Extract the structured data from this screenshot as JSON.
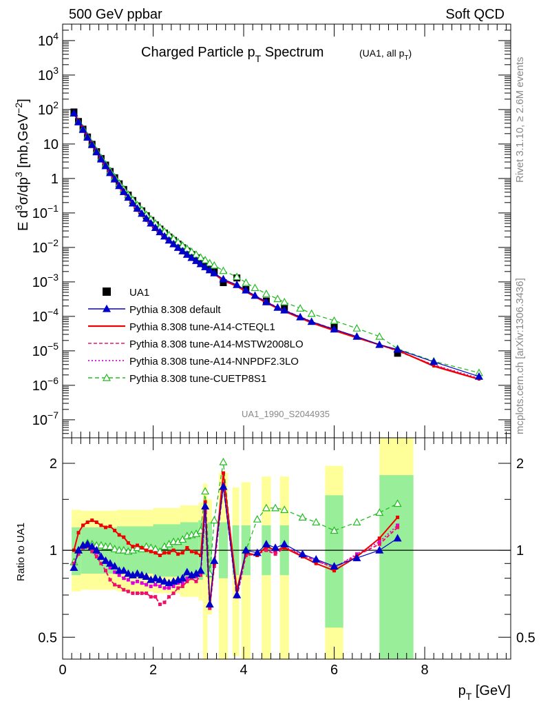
{
  "header": {
    "left": "500 GeV ppbar",
    "right": "Soft QCD"
  },
  "side": {
    "rivet": "Rivet 3.1.10, ≥ 2.6M events",
    "url": "mcplots.cern.ch [arXiv:1306.3436]"
  },
  "watermark": "UA1_1990_S2044935",
  "chart_data": [
    {
      "type": "scatter",
      "title": "Charged Particle pT Spectrum",
      "subtitle": "(UA1, all pT)",
      "ylabel": "E d3σ/dp3 [mb,GeV-2]",
      "xlabel": "pT [GeV]",
      "yscale": "log",
      "xlim": [
        0,
        9.9
      ],
      "ylim": [
        3e-08,
        30000
      ],
      "y_ticks": [
        {
          "v": 1e-07,
          "m": "10",
          "e": "−7"
        },
        {
          "v": 1e-06,
          "m": "10",
          "e": "−6"
        },
        {
          "v": 1e-05,
          "m": "10",
          "e": "−5"
        },
        {
          "v": 0.0001,
          "m": "10",
          "e": "−4"
        },
        {
          "v": 0.001,
          "m": "10",
          "e": "−3"
        },
        {
          "v": 0.01,
          "m": "10",
          "e": "−2"
        },
        {
          "v": 0.1,
          "m": "10",
          "e": "−1"
        },
        {
          "v": 1,
          "m": "1",
          "e": ""
        },
        {
          "v": 10,
          "m": "10",
          "e": ""
        },
        {
          "v": 100,
          "m": "10",
          "e": "2"
        },
        {
          "v": 1000,
          "m": "10",
          "e": "3"
        },
        {
          "v": 10000,
          "m": "10",
          "e": "4"
        }
      ],
      "legend": [
        {
          "label": "UA1",
          "color": "#000000",
          "style": "square"
        },
        {
          "label": "Pythia 8.308 default",
          "color": "#0000cc",
          "style": "solid-triangle"
        },
        {
          "label": "Pythia 8.308 tune-A14-CTEQL1",
          "color": "#ee0000",
          "style": "solid-thick"
        },
        {
          "label": "Pythia 8.308 tune-A14-MSTW2008LO",
          "color": "#ee1166",
          "style": "dashed"
        },
        {
          "label": "Pythia 8.308 tune-A14-NNPDF2.3LO",
          "color": "#dd00dd",
          "style": "dotted"
        },
        {
          "label": "Pythia 8.308 tune-CUETP8S1",
          "color": "#22bb22",
          "style": "dashed-open-triangle"
        }
      ],
      "data_ua1": {
        "x": [
          0.25,
          0.35,
          0.45,
          0.55,
          0.65,
          0.75,
          0.85,
          0.95,
          1.05,
          1.15,
          1.25,
          1.35,
          1.45,
          1.55,
          1.65,
          1.75,
          1.85,
          1.95,
          2.05,
          2.15,
          2.25,
          2.35,
          2.45,
          2.55,
          2.65,
          2.75,
          2.85,
          2.95,
          3.05,
          3.15,
          3.25,
          3.35,
          3.55,
          3.85,
          4.05,
          4.5,
          4.9,
          6.0,
          7.4
        ],
        "y": [
          85,
          45,
          27,
          16,
          9.8,
          6.0,
          3.8,
          2.45,
          1.6,
          1.05,
          0.7,
          0.48,
          0.33,
          0.23,
          0.16,
          0.115,
          0.083,
          0.061,
          0.045,
          0.034,
          0.026,
          0.02,
          0.016,
          0.0125,
          0.0098,
          0.0078,
          0.0062,
          0.005,
          0.004,
          0.0032,
          0.0024,
          0.002,
          0.00095,
          0.0013,
          0.0006,
          0.00028,
          0.00017,
          4.8e-05,
          8.5e-06
        ]
      },
      "mc": {
        "x": [
          0.25,
          0.35,
          0.45,
          0.55,
          0.65,
          0.75,
          0.85,
          0.95,
          1.05,
          1.15,
          1.25,
          1.35,
          1.45,
          1.55,
          1.65,
          1.75,
          1.85,
          1.95,
          2.05,
          2.15,
          2.25,
          2.35,
          2.45,
          2.55,
          2.65,
          2.75,
          2.85,
          2.95,
          3.05,
          3.15,
          3.25,
          3.35,
          3.55,
          3.85,
          4.05,
          4.25,
          4.5,
          4.75,
          4.9,
          5.25,
          5.5,
          6.0,
          6.5,
          7.0,
          7.4,
          8.2,
          9.2
        ],
        "default": [
          78,
          43,
          26,
          15.5,
          9.4,
          5.8,
          3.6,
          2.3,
          1.45,
          0.95,
          0.61,
          0.41,
          0.28,
          0.19,
          0.135,
          0.096,
          0.069,
          0.05,
          0.037,
          0.028,
          0.021,
          0.016,
          0.0125,
          0.0098,
          0.0078,
          0.0062,
          0.005,
          0.0041,
          0.0033,
          0.0027,
          0.0022,
          0.0018,
          0.0012,
          0.00082,
          0.00057,
          0.0004,
          0.00026,
          0.00018,
          0.00015,
          9.5e-05,
          7e-05,
          4.2e-05,
          2.6e-05,
          1.5e-05,
          1.1e-05,
          4.8e-06,
          1.8e-06
        ],
        "cteql1": [
          80,
          48,
          30,
          17.5,
          10.5,
          6.3,
          3.9,
          2.5,
          1.6,
          1.05,
          0.68,
          0.45,
          0.3,
          0.205,
          0.142,
          0.1,
          0.072,
          0.052,
          0.038,
          0.0285,
          0.021,
          0.016,
          0.0123,
          0.0096,
          0.0075,
          0.006,
          0.0048,
          0.0039,
          0.0032,
          0.0026,
          0.0021,
          0.0017,
          0.0011,
          0.00075,
          0.00052,
          0.00037,
          0.00025,
          0.00017,
          0.00014,
          9e-05,
          6.5e-05,
          3.9e-05,
          2.4e-05,
          1.5e-05,
          1.05e-05,
          3.6e-06,
          1.5e-06
        ],
        "mstw": [
          77,
          43,
          26,
          15.3,
          9.2,
          5.6,
          3.4,
          2.1,
          1.32,
          0.86,
          0.55,
          0.37,
          0.25,
          0.17,
          0.118,
          0.084,
          0.06,
          0.044,
          0.033,
          0.025,
          0.019,
          0.0145,
          0.0113,
          0.0089,
          0.007,
          0.0056,
          0.0046,
          0.0038,
          0.0031,
          0.0026,
          0.0021,
          0.0017,
          0.00115,
          0.0008,
          0.00055,
          0.00039,
          0.00026,
          0.00018,
          0.00015,
          9.6e-05,
          7e-05,
          4.2e-05,
          2.5e-05,
          1.5e-05,
          1e-05,
          3.8e-06,
          1.5e-06
        ],
        "nnpdf": [
          78,
          43.5,
          26.5,
          15.6,
          9.4,
          5.75,
          3.5,
          2.2,
          1.4,
          0.9,
          0.58,
          0.39,
          0.265,
          0.18,
          0.126,
          0.089,
          0.064,
          0.047,
          0.035,
          0.026,
          0.0198,
          0.0152,
          0.0118,
          0.0093,
          0.0073,
          0.0058,
          0.0047,
          0.0039,
          0.0032,
          0.0026,
          0.0021,
          0.0017,
          0.00115,
          0.0008,
          0.00056,
          0.0004,
          0.00027,
          0.00018,
          0.00015,
          9.6e-05,
          7e-05,
          4.1e-05,
          2.5e-05,
          1.5e-05,
          1e-05,
          3.9e-06,
          1.6e-06
        ],
        "cuetp8s1": [
          77,
          45,
          28,
          16.8,
          10.3,
          6.3,
          3.95,
          2.55,
          1.65,
          1.08,
          0.72,
          0.49,
          0.34,
          0.24,
          0.17,
          0.122,
          0.089,
          0.066,
          0.05,
          0.038,
          0.029,
          0.023,
          0.018,
          0.0143,
          0.0114,
          0.0092,
          0.0075,
          0.0062,
          0.0051,
          0.0043,
          0.0035,
          0.003,
          0.0021,
          0.0014,
          0.00095,
          0.00067,
          0.00045,
          0.00032,
          0.00026,
          0.00017,
          0.00012,
          7.5e-05,
          4.5e-05,
          2.6e-05,
          1.15e-05,
          5e-06,
          2.3e-06
        ]
      }
    },
    {
      "type": "line",
      "ylabel": "Ratio to UA1",
      "xlabel": "pT [GeV]",
      "yscale": "log",
      "xlim": [
        0,
        9.9
      ],
      "ylim": [
        0.42,
        2.45
      ],
      "y_ticks": [
        "0.5",
        "1",
        "2"
      ],
      "x_ticks": [
        "0",
        "2",
        "4",
        "6",
        "8"
      ],
      "bands": [
        {
          "x0": 0.2,
          "x1": 0.4,
          "inner": [
            0.82,
            1.2
          ],
          "outer": [
            0.72,
            1.38
          ]
        },
        {
          "x0": 0.4,
          "x1": 1.2,
          "inner": [
            0.83,
            1.2
          ],
          "outer": [
            0.73,
            1.37
          ]
        },
        {
          "x0": 1.2,
          "x1": 2.0,
          "inner": [
            0.83,
            1.21
          ],
          "outer": [
            0.72,
            1.38
          ]
        },
        {
          "x0": 2.0,
          "x1": 2.6,
          "inner": [
            0.81,
            1.23
          ],
          "outer": [
            0.71,
            1.4
          ]
        },
        {
          "x0": 2.6,
          "x1": 3.0,
          "inner": [
            0.8,
            1.25
          ],
          "outer": [
            0.69,
            1.43
          ]
        },
        {
          "x0": 3.0,
          "x1": 3.1,
          "inner": [
            0.79,
            1.27
          ],
          "outer": [
            0.67,
            1.46
          ]
        },
        {
          "x0": 3.1,
          "x1": 3.2,
          "inner": [
            0.82,
            1.2
          ],
          "outer": [
            0.4,
            1.7
          ]
        },
        {
          "x0": 3.2,
          "x1": 3.3,
          "inner": [
            0.8,
            1.25
          ],
          "outer": [
            0.6,
            1.5
          ]
        },
        {
          "x0": 3.45,
          "x1": 3.65,
          "inner": [
            0.8,
            1.25
          ],
          "outer": [
            0.38,
            1.85
          ]
        },
        {
          "x0": 3.75,
          "x1": 3.9,
          "inner": [
            0.82,
            1.22
          ],
          "outer": [
            0.43,
            1.65
          ]
        },
        {
          "x0": 3.95,
          "x1": 4.15,
          "inner": [
            0.82,
            1.22
          ],
          "outer": [
            0.38,
            1.72
          ]
        },
        {
          "x0": 4.4,
          "x1": 4.6,
          "inner": [
            0.82,
            1.22
          ],
          "outer": [
            0.38,
            1.8
          ]
        },
        {
          "x0": 4.8,
          "x1": 5.0,
          "inner": [
            0.82,
            1.22
          ],
          "outer": [
            0.38,
            1.8
          ]
        },
        {
          "x0": 5.8,
          "x1": 6.2,
          "inner": [
            0.54,
            1.55
          ],
          "outer": [
            0.3,
            1.96
          ]
        },
        {
          "x0": 7.0,
          "x1": 7.75,
          "inner": [
            0.3,
            1.82
          ],
          "outer": [
            0.3,
            2.6
          ]
        }
      ],
      "ratios": {
        "default": [
          0.87,
          1.0,
          1.04,
          1.05,
          1.03,
          1.0,
          0.95,
          0.92,
          0.9,
          0.88,
          0.85,
          0.85,
          0.83,
          0.82,
          0.83,
          0.82,
          0.81,
          0.79,
          0.8,
          0.79,
          0.78,
          0.77,
          0.78,
          0.79,
          0.8,
          0.84,
          0.82,
          0.83,
          0.85,
          1.42,
          0.65,
          0.92,
          1.66,
          0.7,
          1.0,
          0.98,
          1.05,
          1.02,
          1.05,
          0.97,
          0.93,
          0.88,
          0.94,
          1.0,
          1.1
        ],
        "cteql1": [
          1.0,
          1.15,
          1.22,
          1.25,
          1.27,
          1.25,
          1.22,
          1.2,
          1.21,
          1.17,
          1.13,
          1.11,
          1.06,
          1.03,
          1.04,
          1.02,
          1.0,
          0.99,
          0.98,
          0.96,
          0.98,
          0.98,
          1.0,
          0.97,
          0.98,
          1.02,
          0.99,
          0.98,
          0.96,
          1.47,
          0.65,
          0.9,
          1.85,
          0.73,
          0.98,
          0.96,
          1.03,
          1.0,
          1.02,
          0.95,
          0.9,
          0.85,
          0.95,
          1.1,
          1.3
        ],
        "mstw": [
          0.9,
          0.97,
          1.02,
          1.03,
          0.99,
          0.95,
          0.9,
          0.85,
          0.79,
          0.76,
          0.75,
          0.73,
          0.72,
          0.71,
          0.71,
          0.71,
          0.71,
          0.69,
          0.69,
          0.65,
          0.66,
          0.69,
          0.71,
          0.74,
          0.75,
          0.78,
          0.8,
          0.78,
          0.82,
          1.35,
          0.63,
          0.88,
          1.68,
          0.69,
          0.96,
          0.97,
          1.0,
          0.97,
          1.02,
          0.96,
          0.92,
          0.87,
          0.96,
          1.05,
          1.2
        ],
        "nnpdf": [
          0.9,
          0.99,
          1.03,
          1.05,
          1.02,
          0.98,
          0.94,
          0.91,
          0.87,
          0.84,
          0.82,
          0.8,
          0.79,
          0.77,
          0.78,
          0.77,
          0.76,
          0.75,
          0.76,
          0.75,
          0.74,
          0.74,
          0.75,
          0.77,
          0.77,
          0.8,
          0.8,
          0.81,
          0.83,
          1.38,
          0.64,
          0.9,
          1.7,
          0.7,
          0.97,
          0.96,
          1.01,
          0.98,
          1.03,
          0.96,
          0.92,
          0.87,
          0.97,
          1.07,
          1.22
        ],
        "cuetp8s1": [
          0.91,
          1.0,
          1.04,
          1.06,
          1.05,
          1.04,
          1.04,
          1.03,
          1.03,
          1.01,
          1.0,
          1.0,
          0.99,
          1.0,
          1.02,
          1.01,
          1.03,
          1.02,
          1.01,
          0.99,
          1.03,
          1.05,
          1.07,
          1.07,
          1.09,
          1.12,
          1.13,
          1.14,
          1.17,
          1.6,
          0.83,
          1.27,
          2.02,
          0.7,
          1.0,
          1.28,
          1.4,
          1.4,
          1.38,
          1.3,
          1.25,
          1.17,
          1.25,
          1.35,
          1.45
        ]
      },
      "ratio_x": [
        0.25,
        0.35,
        0.45,
        0.55,
        0.65,
        0.75,
        0.85,
        0.95,
        1.05,
        1.15,
        1.25,
        1.35,
        1.45,
        1.55,
        1.65,
        1.75,
        1.85,
        1.95,
        2.05,
        2.15,
        2.25,
        2.35,
        2.45,
        2.55,
        2.65,
        2.75,
        2.85,
        2.95,
        3.05,
        3.15,
        3.25,
        3.35,
        3.55,
        3.85,
        4.05,
        4.3,
        4.5,
        4.7,
        4.9,
        5.3,
        5.6,
        6.0,
        6.5,
        7.0,
        7.4
      ]
    }
  ]
}
